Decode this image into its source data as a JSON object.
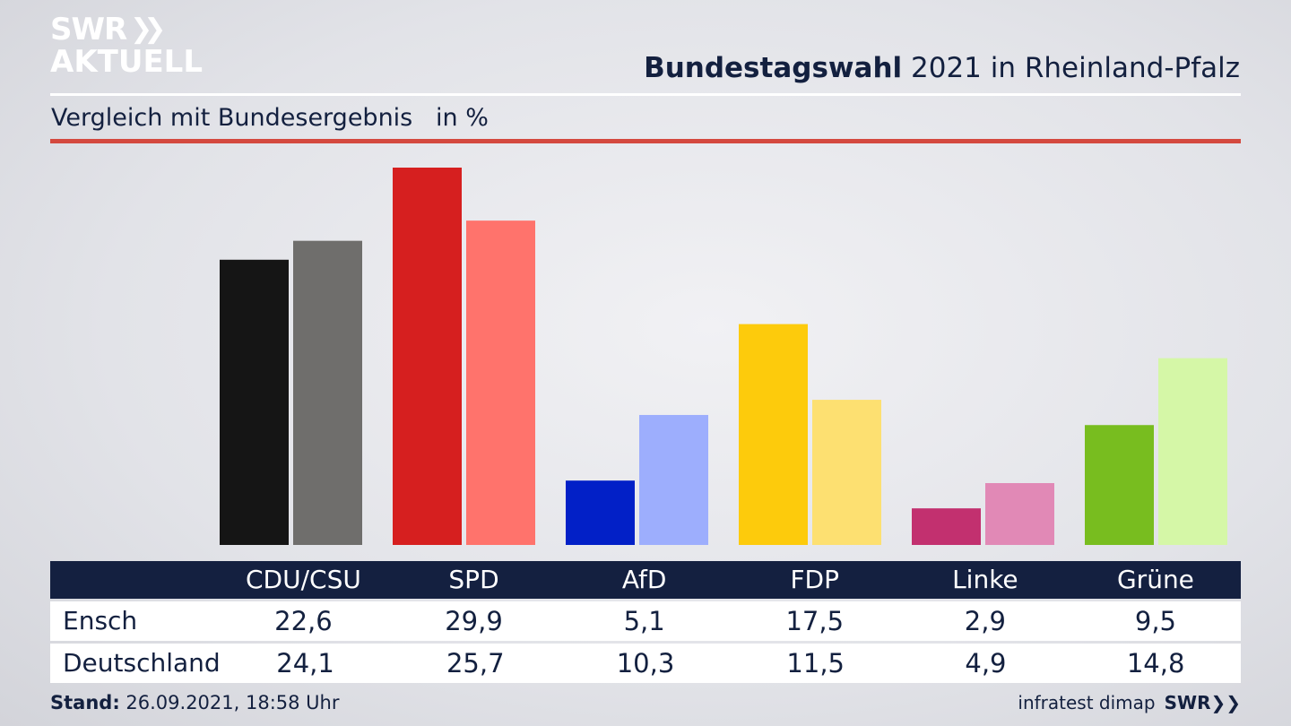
{
  "brand": {
    "logo_line1": "SWR",
    "logo_line2": "AKTUELL",
    "footer_logo": "SWR"
  },
  "header": {
    "title_bold": "Bundestagswahl",
    "title_rest": " 2021 in Rheinland-Pfalz",
    "subtitle": "Vergleich mit Bundesergebnis   in %"
  },
  "footer": {
    "stand_label": "Stand:",
    "stand_value": " 26.09.2021, 18:58 Uhr",
    "source": "infratest dimap"
  },
  "chart_data": {
    "type": "bar",
    "categories": [
      "CDU/CSU",
      "SPD",
      "AfD",
      "FDP",
      "Linke",
      "Grüne"
    ],
    "series": [
      {
        "name": "Ensch",
        "values": [
          22.6,
          29.9,
          5.1,
          17.5,
          2.9,
          9.5
        ],
        "colors": [
          "#151515",
          "#d61f1f",
          "#0220c7",
          "#fdcb0c",
          "#c2306f",
          "#78bd1f"
        ]
      },
      {
        "name": "Deutschland",
        "values": [
          24.1,
          25.7,
          10.3,
          11.5,
          4.9,
          14.8
        ],
        "colors": [
          "#6f6e6c",
          "#ff736c",
          "#9daefd",
          "#fde071",
          "#e189b6",
          "#d5f7a7"
        ]
      }
    ],
    "value_labels": [
      [
        "22,6",
        "29,9",
        "5,1",
        "17,5",
        "2,9",
        "9,5"
      ],
      [
        "24,1",
        "25,7",
        "10,3",
        "11,5",
        "4,9",
        "14,8"
      ]
    ],
    "ylim": [
      0,
      30
    ],
    "grid": false,
    "legend": "table-bottom"
  }
}
